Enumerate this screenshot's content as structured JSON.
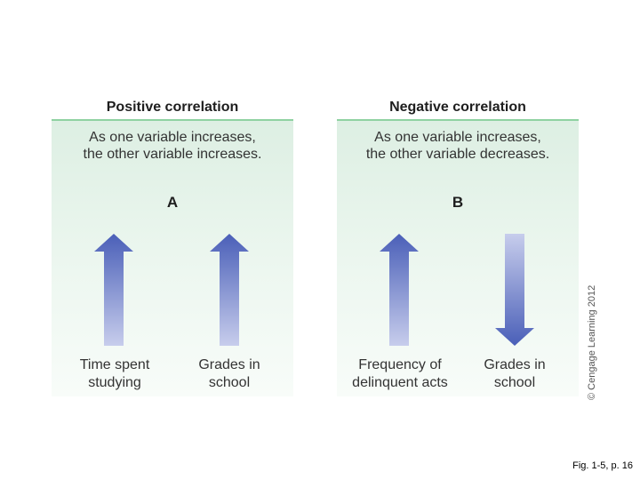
{
  "panels": [
    {
      "title": "Positive correlation",
      "description_line1": "As one variable increases,",
      "description_line2": "the other variable increases.",
      "letter": "A",
      "variables": [
        {
          "line1": "Time spent",
          "line2": "studying",
          "direction": "up"
        },
        {
          "line1": "Grades in",
          "line2": "school",
          "direction": "up"
        }
      ]
    },
    {
      "title": "Negative correlation",
      "description_line1": "As one variable increases,",
      "description_line2": "the other variable decreases.",
      "letter": "B",
      "variables": [
        {
          "line1": "Frequency of",
          "line2": "delinquent acts",
          "direction": "up"
        },
        {
          "line1": "Grades in",
          "line2": "school",
          "direction": "down"
        }
      ]
    }
  ],
  "copyright": "© Cengage Learning 2012",
  "caption": "Fig. 1-5, p. 16",
  "colors": {
    "arrow_dark": "#4a5fb8",
    "arrow_light": "#c7cdec",
    "panel_rule": "#8fd2a2",
    "panel_bg": "#e3f3e8"
  }
}
